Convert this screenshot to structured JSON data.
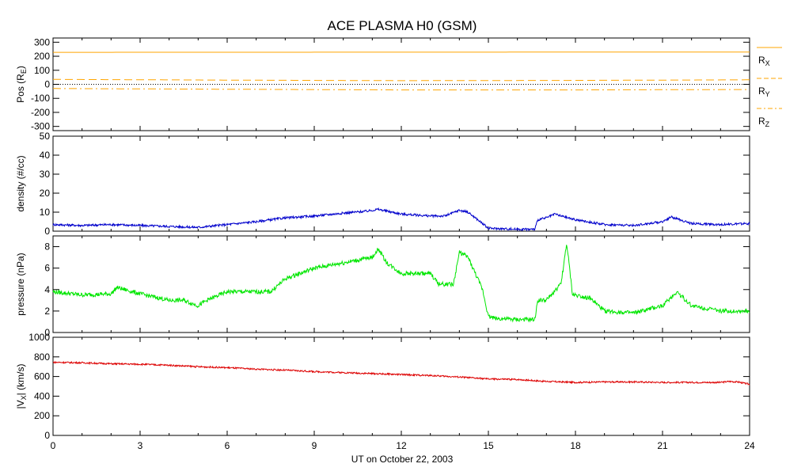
{
  "title": "ACE PLASMA H0 (GSM)",
  "xlabel": "UT on October 22, 2003",
  "x_ticks": [
    "0",
    "3",
    "6",
    "9",
    "12",
    "15",
    "18",
    "21",
    "24"
  ],
  "colors": {
    "pos": "#ffa500",
    "density": "#0000cc",
    "pressure": "#00e600",
    "vx": "#dd0000"
  },
  "panels": [
    {
      "id": "pos",
      "ylabel_main": "Pos (R",
      "ylabel_sub": "E",
      "ylabel_end": ")",
      "ticks": [
        "300",
        "200",
        "100",
        "0",
        "-100",
        "-200",
        "-300"
      ],
      "legend": [
        {
          "main": "R",
          "sub": "X"
        },
        {
          "main": "R",
          "sub": "Y"
        },
        {
          "main": "R",
          "sub": "Z"
        }
      ]
    },
    {
      "id": "density",
      "ylabel": "density (#/cc)",
      "ticks": [
        "50",
        "40",
        "30",
        "20",
        "10",
        "0"
      ]
    },
    {
      "id": "pressure",
      "ylabel": "pressure (nPa)",
      "ticks": [
        "8",
        "6",
        "4",
        "2",
        "0"
      ]
    },
    {
      "id": "vx",
      "ylabel_main": "|V",
      "ylabel_sub": "X",
      "ylabel_end": "| (km/s)",
      "ticks": [
        "1000",
        "800",
        "600",
        "400",
        "200",
        "0"
      ]
    }
  ],
  "chart_data": [
    {
      "type": "line",
      "ylabel": "Pos (RE)",
      "ylim": [
        -330,
        330
      ],
      "x_range": [
        0,
        24
      ],
      "series": [
        {
          "name": "RX",
          "style": "solid",
          "x": [
            0,
            24
          ],
          "values": [
            228,
            230
          ]
        },
        {
          "name": "RY",
          "style": "dashed",
          "x": [
            0,
            6,
            12,
            18,
            24
          ],
          "values": [
            35,
            30,
            26,
            28,
            32
          ]
        },
        {
          "name": "RZ",
          "style": "dashdot",
          "x": [
            0,
            6,
            12,
            18,
            24
          ],
          "values": [
            -30,
            -35,
            -40,
            -40,
            -37
          ]
        }
      ]
    },
    {
      "type": "line",
      "ylabel": "density (#/cc)",
      "ylim": [
        0,
        50
      ],
      "x_range": [
        0,
        24
      ],
      "series": [
        {
          "x": [
            0,
            1,
            2,
            3,
            4,
            5,
            6,
            7,
            8,
            9,
            10,
            10.8,
            11.2,
            12,
            13,
            13.5,
            14,
            14.3,
            14.8,
            15,
            16,
            16.6,
            16.7,
            17,
            17.3,
            17.5,
            18,
            19,
            20,
            21,
            21.3,
            21.6,
            22,
            23,
            24
          ],
          "values": [
            3.5,
            3,
            3.5,
            3,
            2.5,
            2,
            3.5,
            5,
            7,
            8,
            9.5,
            10.5,
            11.5,
            9,
            8,
            8,
            11,
            10,
            4,
            1.5,
            1,
            1,
            6,
            7,
            9,
            8,
            6,
            3.5,
            3,
            5,
            7.5,
            6,
            4,
            3.5,
            4
          ]
        }
      ]
    },
    {
      "type": "line",
      "ylabel": "pressure (nPa)",
      "ylim": [
        0,
        9
      ],
      "x_range": [
        0,
        24
      ],
      "series": [
        {
          "x": [
            0,
            1,
            2,
            2.2,
            3,
            4,
            4.5,
            5,
            5.3,
            6,
            7,
            7.5,
            8,
            8.5,
            9,
            10,
            11,
            11.2,
            11.5,
            12,
            13,
            13.3,
            13.8,
            14,
            14.3,
            14.8,
            15,
            15.3,
            16,
            16.6,
            16.7,
            17,
            17.5,
            17.7,
            17.9,
            18,
            18.5,
            19,
            20,
            21,
            21.5,
            21.8,
            22,
            23,
            24
          ],
          "values": [
            3.8,
            3.5,
            3.6,
            4.2,
            3.6,
            3,
            3,
            2.5,
            3,
            3.8,
            3.8,
            3.8,
            5,
            5.5,
            6,
            6.5,
            7,
            7.8,
            6.5,
            5.5,
            5.5,
            4.5,
            4.5,
            7.5,
            7,
            4,
            1.5,
            1.3,
            1.2,
            1.2,
            3,
            3,
            4.5,
            8.3,
            3.5,
            3.5,
            3.2,
            2,
            1.8,
            2.5,
            3.8,
            3,
            2.5,
            2,
            2
          ]
        }
      ]
    },
    {
      "type": "line",
      "ylabel": "|VX| (km/s)",
      "ylim": [
        0,
        1000
      ],
      "x_range": [
        0,
        24
      ],
      "series": [
        {
          "x": [
            0,
            1,
            2,
            3,
            4,
            5,
            6,
            7,
            8,
            9,
            10,
            11,
            12,
            13,
            14,
            15,
            16,
            17,
            18,
            19,
            20,
            21,
            22,
            23,
            23.3,
            23.6,
            24
          ],
          "values": [
            745,
            740,
            730,
            725,
            715,
            700,
            690,
            675,
            665,
            650,
            640,
            630,
            620,
            610,
            595,
            575,
            570,
            550,
            540,
            545,
            545,
            540,
            540,
            540,
            550,
            545,
            520
          ]
        }
      ]
    }
  ]
}
